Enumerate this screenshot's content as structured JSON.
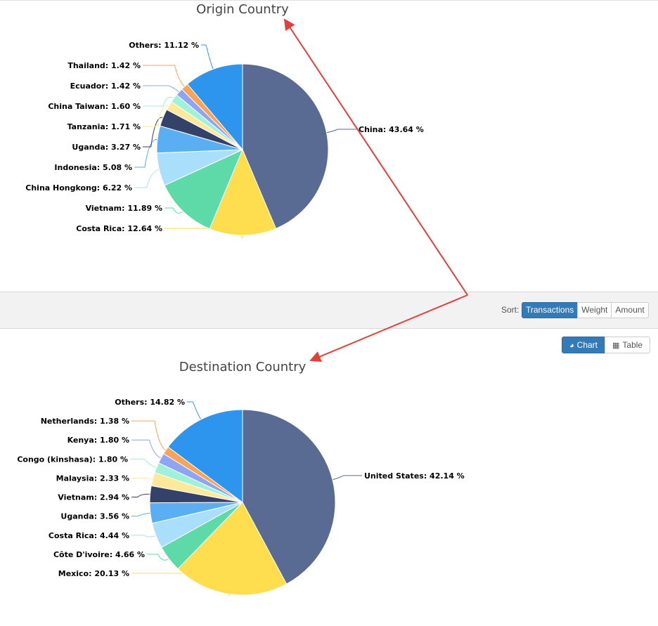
{
  "toolbar": {
    "sort_label": "Sort:",
    "sort_options": [
      "Transactions",
      "Weight",
      "Amount"
    ],
    "sort_selected": "Transactions",
    "view_options": [
      "Chart",
      "Table"
    ],
    "view_selected": "Chart"
  },
  "icons": {
    "chart": "pie-chart-icon",
    "table": "table-icon"
  },
  "colors": {
    "accent": "#337ab7",
    "annotation_arrow": "#e0413a"
  },
  "chart_data": [
    {
      "type": "pie",
      "title": "Origin Country",
      "slices": [
        {
          "label": "China",
          "value": 43.64,
          "color": "#5a6b93"
        },
        {
          "label": "Costa Rica",
          "value": 12.64,
          "color": "#fedd4f"
        },
        {
          "label": "Vietnam",
          "value": 11.89,
          "color": "#5ed9a8"
        },
        {
          "label": "China Hongkong",
          "value": 6.22,
          "color": "#aadffb"
        },
        {
          "label": "Indonesia",
          "value": 5.08,
          "color": "#5aaef2"
        },
        {
          "label": "Uganda",
          "value": 3.27,
          "color": "#34426a"
        },
        {
          "label": "Tanzania",
          "value": 1.71,
          "color": "#fee99a"
        },
        {
          "label": "China Taiwan",
          "value": 1.6,
          "color": "#9ff1d7"
        },
        {
          "label": "Ecuador",
          "value": 1.42,
          "color": "#8fa4f3"
        },
        {
          "label": "Thailand",
          "value": 1.42,
          "color": "#f8a35a"
        },
        {
          "label": "Others",
          "value": 11.12,
          "color": "#2e95ef"
        }
      ],
      "label_format": "{label}: {value} %"
    },
    {
      "type": "pie",
      "title": "Destination Country",
      "slices": [
        {
          "label": "United States",
          "value": 42.14,
          "color": "#5a6b93"
        },
        {
          "label": "Mexico",
          "value": 20.13,
          "color": "#fedd4f"
        },
        {
          "label": "Côte D'ivoire",
          "value": 4.66,
          "color": "#5ed9a8"
        },
        {
          "label": "Costa Rica",
          "value": 4.44,
          "color": "#aadffb"
        },
        {
          "label": "Uganda",
          "value": 3.56,
          "color": "#5aaef2"
        },
        {
          "label": "Vietnam",
          "value": 2.94,
          "color": "#34426a"
        },
        {
          "label": "Malaysia",
          "value": 2.33,
          "color": "#fee99a"
        },
        {
          "label": "Congo (kinshasa)",
          "value": 1.8,
          "color": "#9ff1d7"
        },
        {
          "label": "Kenya",
          "value": 1.8,
          "color": "#8fa4f3"
        },
        {
          "label": "Netherlands",
          "value": 1.38,
          "color": "#f8a35a"
        },
        {
          "label": "Others",
          "value": 14.82,
          "color": "#2e95ef"
        }
      ],
      "label_format": "{label}: {value} %"
    }
  ]
}
